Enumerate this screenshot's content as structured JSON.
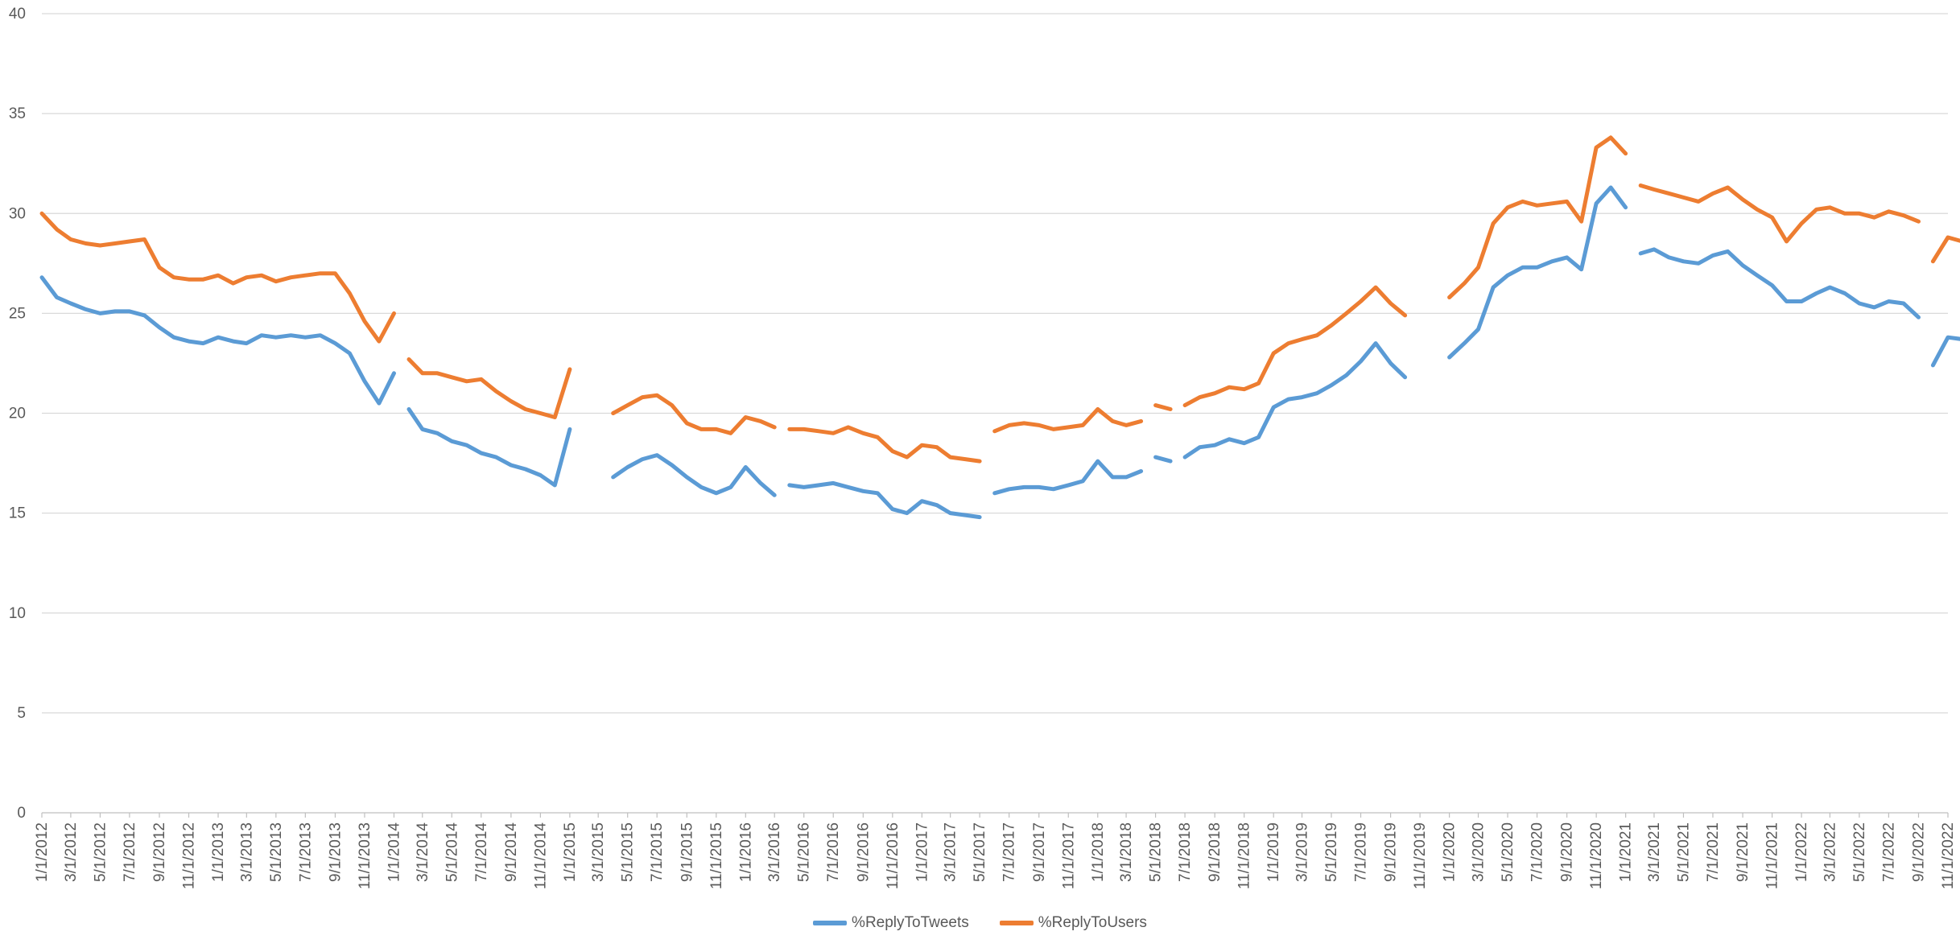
{
  "chart_data": {
    "type": "line",
    "title": "",
    "xlabel": "",
    "ylabel": "",
    "ylim": [
      0,
      40
    ],
    "yticks": [
      0,
      5,
      10,
      15,
      20,
      25,
      30,
      35,
      40
    ],
    "grid": true,
    "legend_position": "bottom",
    "x_tick_labels": [
      "1/1/2012",
      "3/1/2012",
      "5/1/2012",
      "7/1/2012",
      "9/1/2012",
      "11/1/2012",
      "1/1/2013",
      "3/1/2013",
      "5/1/2013",
      "7/1/2013",
      "9/1/2013",
      "11/1/2013",
      "1/1/2014",
      "3/1/2014",
      "5/1/2014",
      "7/1/2014",
      "9/1/2014",
      "11/1/2014",
      "1/1/2015",
      "3/1/2015",
      "5/1/2015",
      "7/1/2015",
      "9/1/2015",
      "11/1/2015",
      "1/1/2016",
      "3/1/2016",
      "5/1/2016",
      "7/1/2016",
      "9/1/2016",
      "11/1/2016",
      "1/1/2017",
      "3/1/2017",
      "5/1/2017",
      "7/1/2017",
      "9/1/2017",
      "11/1/2017",
      "1/1/2018",
      "3/1/2018",
      "5/1/2018",
      "7/1/2018",
      "9/1/2018",
      "11/1/2018",
      "1/1/2019",
      "3/1/2019",
      "5/1/2019",
      "7/1/2019",
      "9/1/2019",
      "11/1/2019",
      "1/1/2020",
      "3/1/2020",
      "5/1/2020",
      "7/1/2020",
      "9/1/2020",
      "11/1/2020",
      "1/1/2021",
      "3/1/2021",
      "5/1/2021",
      "7/1/2021",
      "9/1/2021",
      "11/1/2021",
      "1/1/2022",
      "3/1/2022",
      "5/1/2022",
      "7/1/2022",
      "9/1/2022",
      "11/1/2022"
    ],
    "series": [
      {
        "name": "%ReplyToTweets",
        "color": "#5B9BD5",
        "segments": [
          {
            "x": [
              "1/1/2012",
              "2/1/2012",
              "3/1/2012",
              "4/1/2012",
              "5/1/2012",
              "6/1/2012",
              "7/1/2012",
              "8/1/2012",
              "9/1/2012",
              "10/1/2012",
              "11/1/2012",
              "12/1/2012",
              "1/1/2013",
              "2/1/2013",
              "3/1/2013",
              "4/1/2013",
              "5/1/2013",
              "6/1/2013",
              "7/1/2013",
              "8/1/2013",
              "9/1/2013",
              "10/1/2013",
              "11/1/2013",
              "12/1/2013",
              "1/1/2014"
            ],
            "y": [
              26.8,
              25.8,
              25.5,
              25.2,
              25.0,
              25.1,
              25.1,
              24.9,
              24.3,
              23.8,
              23.6,
              23.5,
              23.8,
              23.6,
              23.5,
              23.9,
              23.8,
              23.9,
              23.8,
              23.9,
              23.5,
              23.0,
              21.6,
              20.5,
              22.0
            ]
          },
          {
            "x": [
              "2/1/2014",
              "3/1/2014",
              "4/1/2014",
              "5/1/2014",
              "6/1/2014",
              "7/1/2014",
              "8/1/2014",
              "9/1/2014",
              "10/1/2014",
              "11/1/2014",
              "12/1/2014",
              "1/1/2015"
            ],
            "y": [
              20.2,
              19.2,
              19.0,
              18.6,
              18.4,
              18.0,
              17.8,
              17.4,
              17.2,
              16.9,
              16.4,
              19.2
            ]
          },
          {
            "x": [
              "4/1/2015",
              "5/1/2015",
              "6/1/2015",
              "7/1/2015",
              "8/1/2015",
              "9/1/2015",
              "10/1/2015",
              "11/1/2015",
              "12/1/2015",
              "1/1/2016",
              "2/1/2016",
              "3/1/2016"
            ],
            "y": [
              16.8,
              17.3,
              17.7,
              17.9,
              17.4,
              16.8,
              16.3,
              16.0,
              16.3,
              17.3,
              16.5,
              15.9
            ]
          },
          {
            "x": [
              "4/1/2016",
              "5/1/2016",
              "6/1/2016",
              "7/1/2016",
              "8/1/2016",
              "9/1/2016",
              "10/1/2016",
              "11/1/2016",
              "12/1/2016",
              "1/1/2017",
              "2/1/2017",
              "3/1/2017",
              "4/1/2017",
              "5/1/2017"
            ],
            "y": [
              16.4,
              16.3,
              16.4,
              16.5,
              16.3,
              16.1,
              16.0,
              15.2,
              15.0,
              15.6,
              15.4,
              15.0,
              14.9,
              14.8
            ]
          },
          {
            "x": [
              "6/1/2017",
              "7/1/2017",
              "8/1/2017",
              "9/1/2017",
              "10/1/2017",
              "11/1/2017",
              "12/1/2017",
              "1/1/2018",
              "2/1/2018",
              "3/1/2018",
              "4/1/2018"
            ],
            "y": [
              16.0,
              16.2,
              16.3,
              16.3,
              16.2,
              16.4,
              16.6,
              17.6,
              16.8,
              16.8,
              17.1
            ]
          },
          {
            "x": [
              "5/1/2018",
              "6/1/2018"
            ],
            "y": [
              17.8,
              17.6
            ]
          },
          {
            "x": [
              "7/1/2018",
              "8/1/2018",
              "9/1/2018",
              "10/1/2018",
              "11/1/2018",
              "12/1/2018",
              "1/1/2019",
              "2/1/2019",
              "3/1/2019",
              "4/1/2019",
              "5/1/2019",
              "6/1/2019",
              "7/1/2019",
              "8/1/2019",
              "9/1/2019",
              "10/1/2019"
            ],
            "y": [
              17.8,
              18.3,
              18.4,
              18.7,
              18.5,
              18.8,
              20.3,
              20.7,
              20.8,
              21.0,
              21.4,
              21.9,
              22.6,
              23.5,
              22.5,
              21.8
            ]
          },
          {
            "x": [
              "1/1/2020",
              "2/1/2020",
              "3/1/2020",
              "4/1/2020",
              "5/1/2020",
              "6/1/2020",
              "7/1/2020",
              "8/1/2020",
              "9/1/2020",
              "10/1/2020",
              "11/1/2020",
              "12/1/2020",
              "1/1/2021"
            ],
            "y": [
              22.8,
              23.5,
              24.2,
              26.3,
              26.9,
              27.3,
              27.3,
              27.6,
              27.8,
              27.2,
              30.5,
              31.3,
              30.3
            ]
          },
          {
            "x": [
              "2/1/2021",
              "3/1/2021",
              "4/1/2021",
              "5/1/2021",
              "6/1/2021",
              "7/1/2021",
              "8/1/2021",
              "9/1/2021",
              "10/1/2021",
              "11/1/2021",
              "12/1/2021",
              "1/1/2022",
              "2/1/2022",
              "3/1/2022",
              "4/1/2022",
              "5/1/2022",
              "6/1/2022",
              "7/1/2022",
              "8/1/2022",
              "9/1/2022"
            ],
            "y": [
              28.0,
              28.2,
              27.8,
              27.6,
              27.5,
              27.9,
              28.1,
              27.4,
              26.9,
              26.4,
              25.6,
              25.6,
              26.0,
              26.3,
              26.0,
              25.5,
              25.3,
              25.6,
              25.5,
              24.8
            ]
          },
          {
            "x": [
              "10/1/2022",
              "11/1/2022",
              "12/1/2022"
            ],
            "y": [
              22.4,
              23.8,
              23.7
            ]
          }
        ]
      },
      {
        "name": "%ReplyToUsers",
        "color": "#ED7D31",
        "segments": [
          {
            "x": [
              "1/1/2012",
              "2/1/2012",
              "3/1/2012",
              "4/1/2012",
              "5/1/2012",
              "6/1/2012",
              "7/1/2012",
              "8/1/2012",
              "9/1/2012",
              "10/1/2012",
              "11/1/2012",
              "12/1/2012",
              "1/1/2013",
              "2/1/2013",
              "3/1/2013",
              "4/1/2013",
              "5/1/2013",
              "6/1/2013",
              "7/1/2013",
              "8/1/2013",
              "9/1/2013",
              "10/1/2013",
              "11/1/2013",
              "12/1/2013",
              "1/1/2014"
            ],
            "y": [
              30.0,
              29.2,
              28.7,
              28.5,
              28.4,
              28.5,
              28.6,
              28.7,
              27.3,
              26.8,
              26.7,
              26.7,
              26.9,
              26.5,
              26.8,
              26.9,
              26.6,
              26.8,
              26.9,
              27.0,
              27.0,
              26.0,
              24.6,
              23.6,
              25.0
            ]
          },
          {
            "x": [
              "2/1/2014",
              "3/1/2014",
              "4/1/2014",
              "5/1/2014",
              "6/1/2014",
              "7/1/2014",
              "8/1/2014",
              "9/1/2014",
              "10/1/2014",
              "11/1/2014",
              "12/1/2014",
              "1/1/2015"
            ],
            "y": [
              22.7,
              22.0,
              22.0,
              21.8,
              21.6,
              21.7,
              21.1,
              20.6,
              20.2,
              20.0,
              19.8,
              22.2
            ]
          },
          {
            "x": [
              "4/1/2015",
              "5/1/2015",
              "6/1/2015",
              "7/1/2015",
              "8/1/2015",
              "9/1/2015",
              "10/1/2015",
              "11/1/2015",
              "12/1/2015",
              "1/1/2016",
              "2/1/2016",
              "3/1/2016"
            ],
            "y": [
              20.0,
              20.4,
              20.8,
              20.9,
              20.4,
              19.5,
              19.2,
              19.2,
              19.0,
              19.8,
              19.6,
              19.3
            ]
          },
          {
            "x": [
              "4/1/2016",
              "5/1/2016",
              "6/1/2016",
              "7/1/2016",
              "8/1/2016",
              "9/1/2016",
              "10/1/2016",
              "11/1/2016",
              "12/1/2016",
              "1/1/2017",
              "2/1/2017",
              "3/1/2017",
              "4/1/2017",
              "5/1/2017"
            ],
            "y": [
              19.2,
              19.2,
              19.1,
              19.0,
              19.3,
              19.0,
              18.8,
              18.1,
              17.8,
              18.4,
              18.3,
              17.8,
              17.7,
              17.6
            ]
          },
          {
            "x": [
              "6/1/2017",
              "7/1/2017",
              "8/1/2017",
              "9/1/2017",
              "10/1/2017",
              "11/1/2017",
              "12/1/2017",
              "1/1/2018",
              "2/1/2018",
              "3/1/2018",
              "4/1/2018"
            ],
            "y": [
              19.1,
              19.4,
              19.5,
              19.4,
              19.2,
              19.3,
              19.4,
              20.2,
              19.6,
              19.4,
              19.6
            ]
          },
          {
            "x": [
              "5/1/2018",
              "6/1/2018"
            ],
            "y": [
              20.4,
              20.2
            ]
          },
          {
            "x": [
              "7/1/2018",
              "8/1/2018",
              "9/1/2018",
              "10/1/2018",
              "11/1/2018",
              "12/1/2018",
              "1/1/2019",
              "2/1/2019",
              "3/1/2019",
              "4/1/2019",
              "5/1/2019",
              "6/1/2019",
              "7/1/2019",
              "8/1/2019",
              "9/1/2019",
              "10/1/2019"
            ],
            "y": [
              20.4,
              20.8,
              21.0,
              21.3,
              21.2,
              21.5,
              23.0,
              23.5,
              23.7,
              23.9,
              24.4,
              25.0,
              25.6,
              26.3,
              25.5,
              24.9
            ]
          },
          {
            "x": [
              "1/1/2020",
              "2/1/2020",
              "3/1/2020",
              "4/1/2020",
              "5/1/2020",
              "6/1/2020",
              "7/1/2020",
              "8/1/2020",
              "9/1/2020",
              "10/1/2020",
              "11/1/2020",
              "12/1/2020",
              "1/1/2021"
            ],
            "y": [
              25.8,
              26.5,
              27.3,
              29.5,
              30.3,
              30.6,
              30.4,
              30.5,
              30.6,
              29.6,
              33.3,
              33.8,
              33.0
            ]
          },
          {
            "x": [
              "2/1/2021",
              "3/1/2021",
              "4/1/2021",
              "5/1/2021",
              "6/1/2021",
              "7/1/2021",
              "8/1/2021",
              "9/1/2021",
              "10/1/2021",
              "11/1/2021",
              "12/1/2021",
              "1/1/2022",
              "2/1/2022",
              "3/1/2022",
              "4/1/2022",
              "5/1/2022",
              "6/1/2022",
              "7/1/2022",
              "8/1/2022",
              "9/1/2022"
            ],
            "y": [
              31.4,
              31.2,
              31.0,
              30.8,
              30.6,
              31.0,
              31.3,
              30.7,
              30.2,
              29.8,
              28.6,
              29.5,
              30.2,
              30.3,
              30.0,
              30.0,
              29.8,
              30.1,
              29.9,
              29.6
            ]
          },
          {
            "x": [
              "10/1/2022",
              "11/1/2022",
              "12/1/2022"
            ],
            "y": [
              27.6,
              28.8,
              28.6
            ]
          }
        ]
      }
    ]
  }
}
